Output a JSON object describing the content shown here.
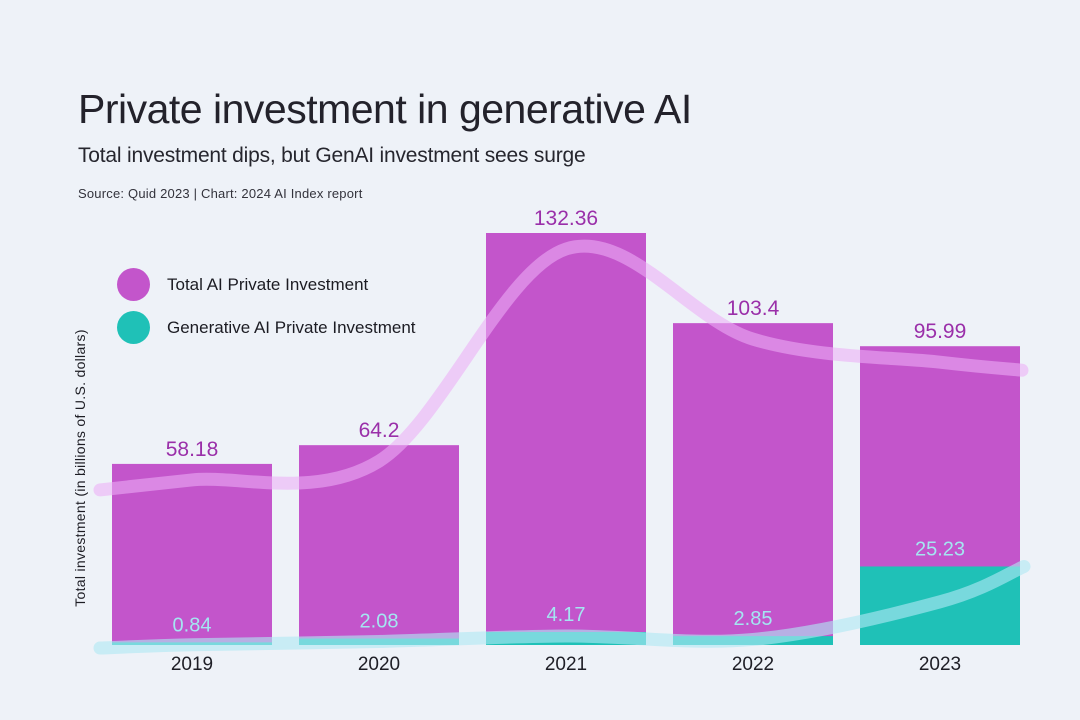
{
  "header": {
    "title": "Private investment in generative AI",
    "subtitle": "Total investment dips, but GenAI investment sees surge",
    "source": "Source: Quid 2023 | Chart: 2024 AI Index report"
  },
  "colors": {
    "background": "#eef2f8",
    "total_bar": "#c355cb",
    "genai_bar": "#1fc1b7",
    "total_value_label": "#9a2fa9",
    "genai_value_label": "#a4e6f1",
    "total_trend_line": "rgba(236,174,247,0.58)",
    "genai_trend_line": "rgba(176,233,243,0.62)"
  },
  "chart_data": {
    "type": "bar",
    "categories": [
      "2019",
      "2020",
      "2021",
      "2022",
      "2023"
    ],
    "series": [
      {
        "name": "Total AI Private Investment",
        "values": [
          58.18,
          64.2,
          132.36,
          103.4,
          95.99
        ],
        "color": "#c355cb",
        "label_color": "#9a2fa9"
      },
      {
        "name": "Generative AI Private Investment",
        "values": [
          0.84,
          2.08,
          4.17,
          2.85,
          25.23
        ],
        "color": "#1fc1b7",
        "label_color": "#a4e6f1"
      }
    ],
    "title": "Private investment in generative AI",
    "xlabel": "",
    "ylabel": "Total investment (in billions of U.S. dollars)",
    "ylim": [
      0,
      140
    ],
    "grid": false,
    "axis_lines": false,
    "value_labels": true,
    "legend_position": "upper-left-inside",
    "trend_lines": "smoothed spline over both series, semi-transparent, round caps"
  }
}
